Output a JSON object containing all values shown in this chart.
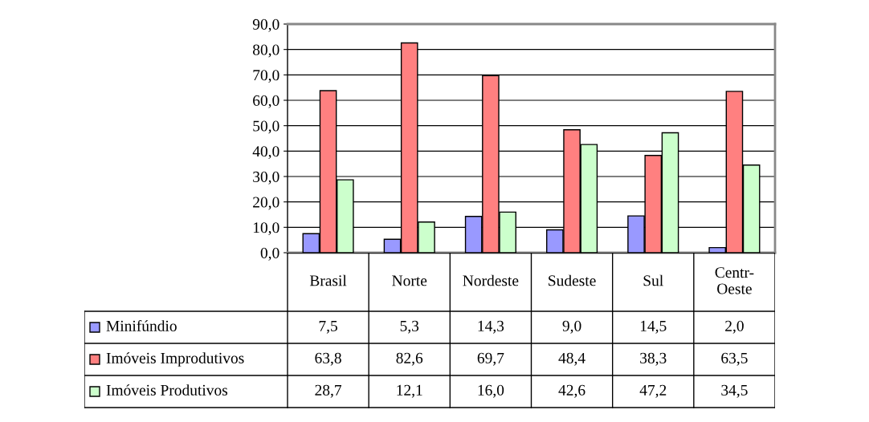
{
  "chart_data": {
    "type": "bar",
    "categories": [
      "Brasil",
      "Norte",
      "Nordeste",
      "Sudeste",
      "Sul",
      "Centr-\nOeste"
    ],
    "series": [
      {
        "name": "Minifúndio",
        "color": "#9999ff",
        "values": [
          7.5,
          5.3,
          14.3,
          9.0,
          14.5,
          2.0
        ],
        "value_labels": [
          "7,5",
          "5,3",
          "14,3",
          "9,0",
          "14,5",
          "2,0"
        ]
      },
      {
        "name": "Imóveis Improdutivos",
        "color": "#ff8080",
        "values": [
          63.8,
          82.6,
          69.7,
          48.4,
          38.3,
          63.5
        ],
        "value_labels": [
          "63,8",
          "82,6",
          "69,7",
          "48,4",
          "38,3",
          "63,5"
        ]
      },
      {
        "name": "Imóveis Produtivos",
        "color": "#ccffcc",
        "values": [
          28.7,
          12.1,
          16.0,
          42.6,
          47.2,
          34.5
        ],
        "value_labels": [
          "28,7",
          "12,1",
          "16,0",
          "42,6",
          "47,2",
          "34,5"
        ]
      }
    ],
    "ylim": [
      0,
      90
    ],
    "yticks": [
      {
        "value": 0,
        "label": "0,0"
      },
      {
        "value": 10,
        "label": "10,0"
      },
      {
        "value": 20,
        "label": "20,0"
      },
      {
        "value": 30,
        "label": "30,0"
      },
      {
        "value": 40,
        "label": "40,0"
      },
      {
        "value": 50,
        "label": "50,0"
      },
      {
        "value": 60,
        "label": "60,0"
      },
      {
        "value": 70,
        "label": "70,0"
      },
      {
        "value": 80,
        "label": "80,0"
      },
      {
        "value": 90,
        "label": "90,0"
      }
    ],
    "grid": "y",
    "legend": "bottom left"
  }
}
